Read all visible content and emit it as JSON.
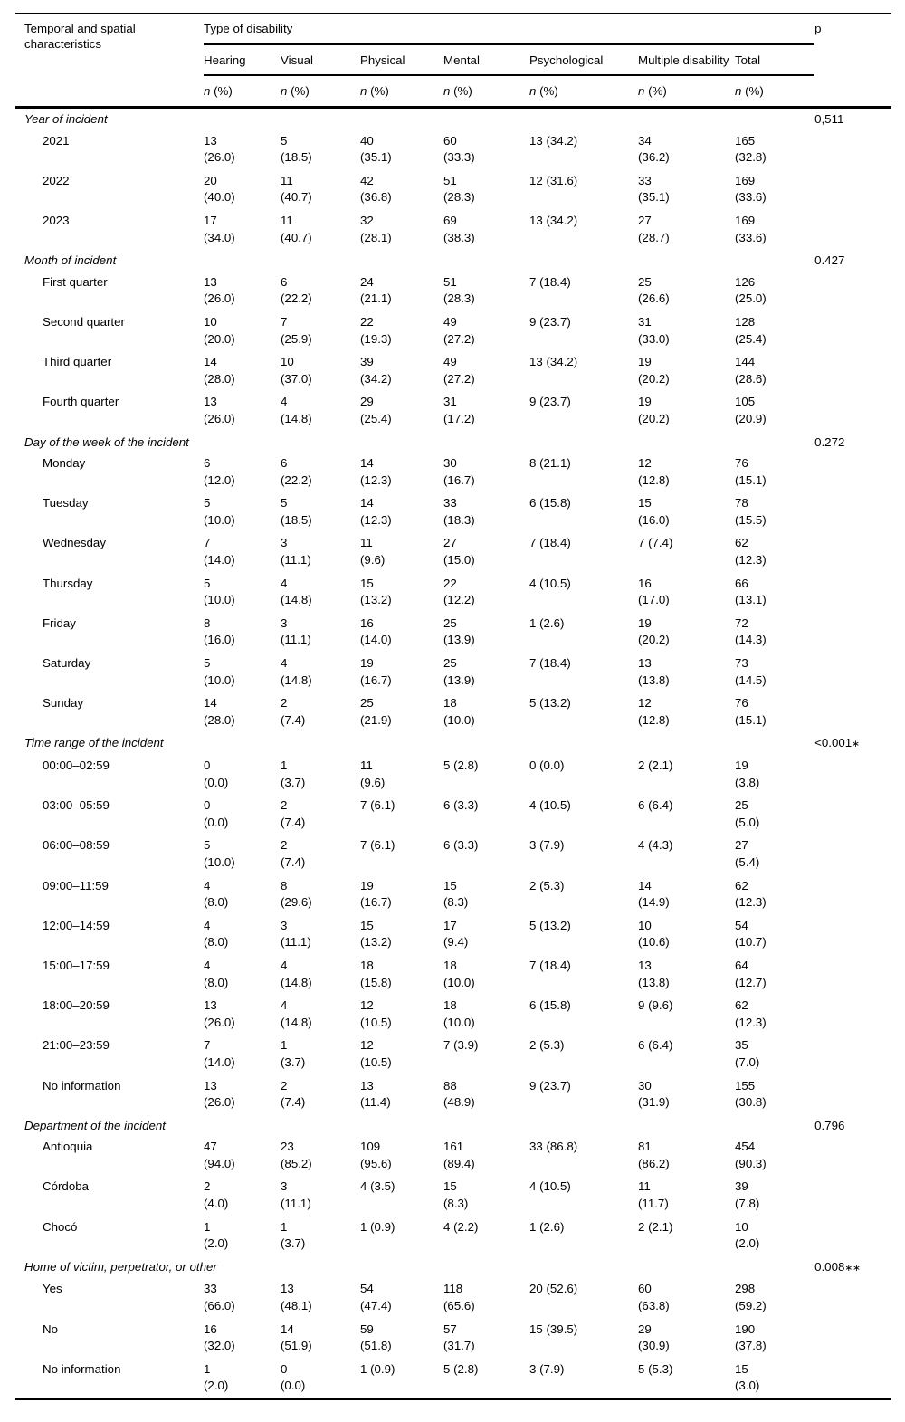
{
  "colors": {
    "text": "#000000",
    "background": "#ffffff",
    "rule": "#000000"
  },
  "table": {
    "row_header": "Temporal and spatial characteristics",
    "col_group_header": "Type of disability",
    "p_header": "p",
    "columns": [
      "Hearing",
      "Visual",
      "Physical",
      "Mental",
      "Psychological",
      "Multiple disability",
      "Total"
    ],
    "subheader": {
      "n": "n",
      "pct": "(%)"
    },
    "sections": [
      {
        "label": "Year of incident",
        "p": "0,511",
        "rows": [
          {
            "label": "2021",
            "cells": [
              "13\n(26.0)",
              "5\n(18.5)",
              "40\n(35.1)",
              "60\n(33.3)",
              "13 (34.2)",
              "34\n(36.2)",
              "165\n(32.8)"
            ]
          },
          {
            "label": "2022",
            "cells": [
              "20\n(40.0)",
              "11\n(40.7)",
              "42\n(36.8)",
              "51\n(28.3)",
              "12 (31.6)",
              "33\n(35.1)",
              "169\n(33.6)"
            ]
          },
          {
            "label": "2023",
            "cells": [
              "17\n(34.0)",
              "11\n(40.7)",
              "32\n(28.1)",
              "69\n(38.3)",
              "13 (34.2)",
              "27\n(28.7)",
              "169\n(33.6)"
            ]
          }
        ]
      },
      {
        "label": "Month of incident",
        "p": "0.427",
        "rows": [
          {
            "label": "First quarter",
            "cells": [
              "13\n(26.0)",
              "6\n(22.2)",
              "24\n(21.1)",
              "51\n(28.3)",
              "7 (18.4)",
              "25\n(26.6)",
              "126\n(25.0)"
            ]
          },
          {
            "label": "Second quarter",
            "cells": [
              "10\n(20.0)",
              "7\n(25.9)",
              "22\n(19.3)",
              "49\n(27.2)",
              "9 (23.7)",
              "31\n(33.0)",
              "128\n(25.4)"
            ]
          },
          {
            "label": "Third quarter",
            "cells": [
              "14\n(28.0)",
              "10\n(37.0)",
              "39\n(34.2)",
              "49\n(27.2)",
              "13 (34.2)",
              "19\n(20.2)",
              "144\n(28.6)"
            ]
          },
          {
            "label": "Fourth quarter",
            "cells": [
              "13\n(26.0)",
              "4\n(14.8)",
              "29\n(25.4)",
              "31\n(17.2)",
              "9 (23.7)",
              "19\n(20.2)",
              "105\n(20.9)"
            ]
          }
        ]
      },
      {
        "label": "Day of the week of the incident",
        "p": "0.272",
        "rows": [
          {
            "label": "Monday",
            "cells": [
              "6\n(12.0)",
              "6\n(22.2)",
              "14\n(12.3)",
              "30\n(16.7)",
              "8 (21.1)",
              "12\n(12.8)",
              "76\n(15.1)"
            ]
          },
          {
            "label": "Tuesday",
            "cells": [
              "5\n(10.0)",
              "5\n(18.5)",
              "14\n(12.3)",
              "33\n(18.3)",
              "6 (15.8)",
              "15\n(16.0)",
              "78\n(15.5)"
            ]
          },
          {
            "label": "Wednesday",
            "cells": [
              "7\n(14.0)",
              "3\n(11.1)",
              "11\n(9.6)",
              "27\n(15.0)",
              "7 (18.4)",
              "7 (7.4)",
              "62\n(12.3)"
            ]
          },
          {
            "label": "Thursday",
            "cells": [
              "5\n(10.0)",
              "4\n(14.8)",
              "15\n(13.2)",
              "22\n(12.2)",
              "4 (10.5)",
              "16\n(17.0)",
              "66\n(13.1)"
            ]
          },
          {
            "label": "Friday",
            "cells": [
              "8\n(16.0)",
              "3\n(11.1)",
              "16\n(14.0)",
              "25\n(13.9)",
              "1 (2.6)",
              "19\n(20.2)",
              "72\n(14.3)"
            ]
          },
          {
            "label": "Saturday",
            "cells": [
              "5\n(10.0)",
              "4\n(14.8)",
              "19\n(16.7)",
              "25\n(13.9)",
              "7 (18.4)",
              "13\n(13.8)",
              "73\n(14.5)"
            ]
          },
          {
            "label": "Sunday",
            "cells": [
              "14\n(28.0)",
              "2\n(7.4)",
              "25\n(21.9)",
              "18\n(10.0)",
              "5 (13.2)",
              "12\n(12.8)",
              "76\n(15.1)"
            ]
          }
        ]
      },
      {
        "label": "Time range of the incident",
        "p": "<0.001∗",
        "rows": [
          {
            "label": "00:00–02:59",
            "cells": [
              "0\n(0.0)",
              "1\n(3.7)",
              "11\n(9.6)",
              "5 (2.8)",
              "0 (0.0)",
              "2 (2.1)",
              "19\n(3.8)"
            ]
          },
          {
            "label": "03:00–05:59",
            "cells": [
              "0\n(0.0)",
              "2\n(7.4)",
              "7 (6.1)",
              "6 (3.3)",
              "4 (10.5)",
              "6 (6.4)",
              "25\n(5.0)"
            ]
          },
          {
            "label": "06:00–08:59",
            "cells": [
              "5\n(10.0)",
              "2\n(7.4)",
              "7 (6.1)",
              "6 (3.3)",
              "3 (7.9)",
              "4 (4.3)",
              "27\n(5.4)"
            ]
          },
          {
            "label": "09:00–11:59",
            "cells": [
              "4\n(8.0)",
              "8\n(29.6)",
              "19\n(16.7)",
              "15\n(8.3)",
              "2 (5.3)",
              "14\n(14.9)",
              "62\n(12.3)"
            ]
          },
          {
            "label": "12:00–14:59",
            "cells": [
              "4\n(8.0)",
              "3\n(11.1)",
              "15\n(13.2)",
              "17\n(9.4)",
              "5 (13.2)",
              "10\n(10.6)",
              "54\n(10.7)"
            ]
          },
          {
            "label": "15:00–17:59",
            "cells": [
              "4\n(8.0)",
              "4\n(14.8)",
              "18\n(15.8)",
              "18\n(10.0)",
              "7 (18.4)",
              "13\n(13.8)",
              "64\n(12.7)"
            ]
          },
          {
            "label": "18:00–20:59",
            "cells": [
              "13\n(26.0)",
              "4\n(14.8)",
              "12\n(10.5)",
              "18\n(10.0)",
              "6 (15.8)",
              "9 (9.6)",
              "62\n(12.3)"
            ]
          },
          {
            "label": "21:00–23:59",
            "cells": [
              "7\n(14.0)",
              "1\n(3.7)",
              "12\n(10.5)",
              "7 (3.9)",
              "2 (5.3)",
              "6 (6.4)",
              "35\n(7.0)"
            ]
          },
          {
            "label": "No information",
            "cells": [
              "13\n(26.0)",
              "2\n(7.4)",
              "13\n(11.4)",
              "88\n(48.9)",
              "9 (23.7)",
              "30\n(31.9)",
              "155\n(30.8)"
            ]
          }
        ]
      },
      {
        "label": "Department of the incident",
        "p": "0.796",
        "rows": [
          {
            "label": "Antioquia",
            "cells": [
              "47\n(94.0)",
              "23\n(85.2)",
              "109\n(95.6)",
              "161\n(89.4)",
              "33 (86.8)",
              "81\n(86.2)",
              "454\n(90.3)"
            ]
          },
          {
            "label": "Córdoba",
            "cells": [
              "2\n(4.0)",
              "3\n(11.1)",
              "4 (3.5)",
              "15\n(8.3)",
              "4 (10.5)",
              "11\n(11.7)",
              "39\n(7.8)"
            ]
          },
          {
            "label": "Chocó",
            "cells": [
              "1\n(2.0)",
              "1\n(3.7)",
              "1 (0.9)",
              "4 (2.2)",
              "1 (2.6)",
              "2 (2.1)",
              "10\n(2.0)"
            ]
          }
        ]
      },
      {
        "label": "Home of victim, perpetrator, or other",
        "p": "0.008∗∗",
        "rows": [
          {
            "label": "Yes",
            "cells": [
              "33\n(66.0)",
              "13\n(48.1)",
              "54\n(47.4)",
              "118\n(65.6)",
              "20 (52.6)",
              "60\n(63.8)",
              "298\n(59.2)"
            ]
          },
          {
            "label": "No",
            "cells": [
              "16\n(32.0)",
              "14\n(51.9)",
              "59\n(51.8)",
              "57\n(31.7)",
              "15 (39.5)",
              "29\n(30.9)",
              "190\n(37.8)"
            ]
          },
          {
            "label": "No information",
            "cells": [
              "1\n(2.0)",
              "0\n(0.0)",
              "1 (0.9)",
              "5 (2.8)",
              "3 (7.9)",
              "5 (5.3)",
              "15\n(3.0)"
            ]
          }
        ]
      }
    ]
  }
}
